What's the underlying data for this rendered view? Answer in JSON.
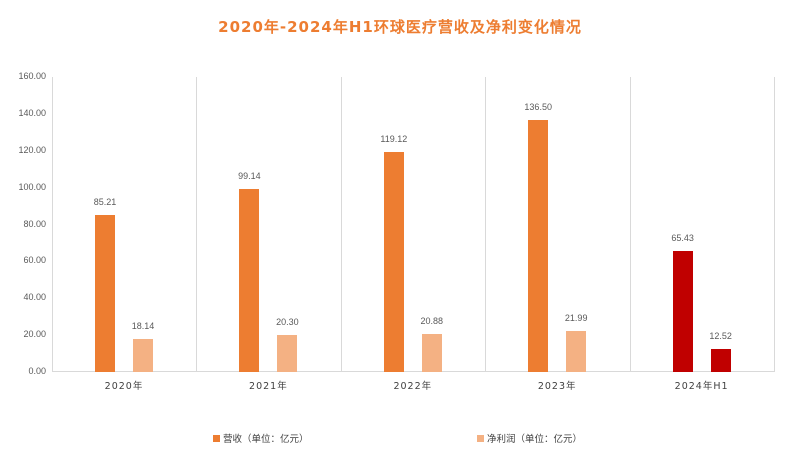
{
  "chart_data": {
    "type": "bar",
    "title": "2020年-2024年H1环球医疗营收及净利变化情况",
    "categories": [
      "2020年",
      "2021年",
      "2022年",
      "2023年",
      "2024年H1"
    ],
    "series": [
      {
        "name": "营收（单位：亿元）",
        "values": [
          85.21,
          99.14,
          119.12,
          136.5,
          65.43
        ],
        "color": "#ED7D31",
        "highlight_color_last": "#C00000"
      },
      {
        "name": "净利润（单位：亿元）",
        "values": [
          18.14,
          20.3,
          20.88,
          21.99,
          12.52
        ],
        "color": "#F4B183",
        "highlight_color_last": "#C00000"
      }
    ],
    "data_labels": {
      "revenue": [
        "85.21",
        "99.14",
        "119.12",
        "136.50",
        "65.43"
      ],
      "net_profit": [
        "18.14",
        "20.30",
        "20.88",
        "21.99",
        "12.52"
      ]
    },
    "xlabel": "",
    "ylabel": "",
    "ylim": [
      0,
      160
    ],
    "yticks": [
      "0.00",
      "20.00",
      "40.00",
      "60.00",
      "80.00",
      "100.00",
      "120.00",
      "140.00",
      "160.00"
    ],
    "grid": "vertical category separators",
    "legend_position": "bottom"
  },
  "title": "2020年-2024年H1环球医疗营收及净利变化情况",
  "legend": {
    "revenue": "营收（单位：亿元）",
    "net_profit": "净利润（单位：亿元）"
  }
}
